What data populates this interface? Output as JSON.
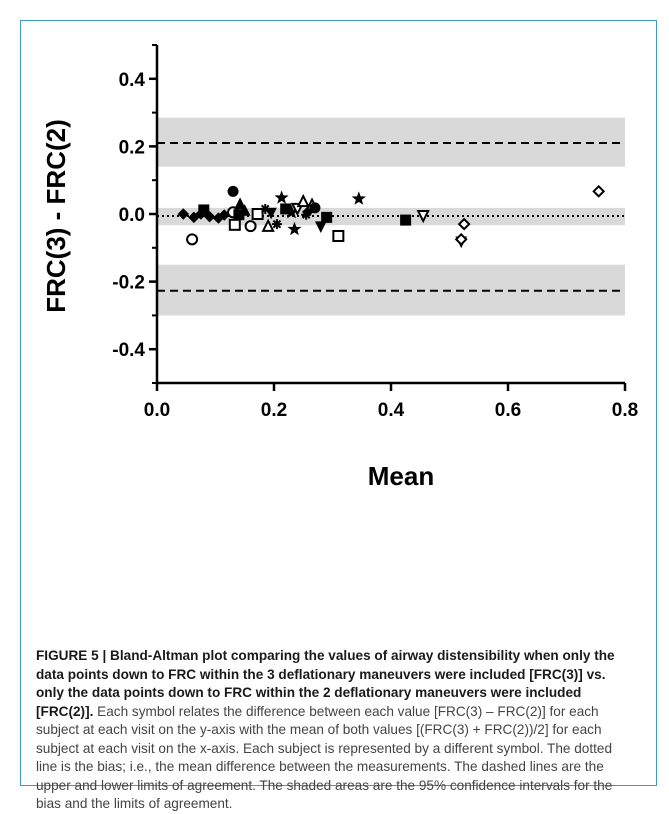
{
  "figure": {
    "caption_lead": "FIGURE 5 | Bland-Altman plot comparing the values of airway distensibility when only the data points down to FRC within the 3 deflationary maneuvers were included [FRC(3)] vs. only the data points down to FRC within the 2 deflationary maneuvers were included [FRC(2)].",
    "caption_body": " Each symbol relates the difference between each value [FRC(3) – FRC(2)] for each subject at each visit on the y-axis with the mean of both values [(FRC(3) + FRC(2))/2] for each subject at each visit on the x-axis. Each subject is represented by a different symbol. The dotted line is the bias; i.e., the mean difference between the measurements. The dashed lines are the upper and lower limits of agreement. The shaded areas are the 95% confidence intervals for the bias and the limits of agreement."
  },
  "chart_data": {
    "type": "scatter",
    "title": "",
    "xlabel": "Mean",
    "ylabel": "FRC(3) - FRC(2)",
    "xlim": [
      0.0,
      0.8
    ],
    "ylim": [
      -0.5,
      0.5
    ],
    "x_ticks": [
      0.0,
      0.2,
      0.4,
      0.6,
      0.8
    ],
    "x_tick_labels": [
      "0.0",
      "0.2",
      "0.4",
      "0.6",
      "0.8"
    ],
    "y_ticks": [
      -0.4,
      -0.2,
      0.0,
      0.2,
      0.4
    ],
    "y_tick_labels": [
      "-0.4",
      "-0.2",
      "0.0",
      "0.2",
      "0.4"
    ],
    "grid": false,
    "bias": -0.006,
    "upper_loa": 0.21,
    "lower_loa": -0.227,
    "shaded_bands": [
      {
        "name": "upper limit of agreement 95% CI",
        "low": 0.14,
        "high": 0.285
      },
      {
        "name": "bias 95% CI",
        "low": -0.033,
        "high": 0.018
      },
      {
        "name": "lower limit of agreement 95% CI",
        "low": -0.3,
        "high": -0.15
      }
    ],
    "band_color": "#d9d9d9",
    "points": [
      {
        "x": 0.045,
        "y": 0.0,
        "marker": "diamond-filled"
      },
      {
        "x": 0.06,
        "y": -0.075,
        "marker": "circle-open"
      },
      {
        "x": 0.063,
        "y": -0.01,
        "marker": "diamond-filled"
      },
      {
        "x": 0.075,
        "y": 0.0,
        "marker": "diamond-filled"
      },
      {
        "x": 0.08,
        "y": 0.012,
        "marker": "square-filled"
      },
      {
        "x": 0.09,
        "y": -0.008,
        "marker": "diamond-filled"
      },
      {
        "x": 0.105,
        "y": -0.012,
        "marker": "diamond-filled"
      },
      {
        "x": 0.115,
        "y": -0.003,
        "marker": "diamond-filled"
      },
      {
        "x": 0.13,
        "y": 0.067,
        "marker": "circle-filled"
      },
      {
        "x": 0.13,
        "y": 0.005,
        "marker": "circle-open"
      },
      {
        "x": 0.133,
        "y": -0.032,
        "marker": "square-open"
      },
      {
        "x": 0.14,
        "y": -0.002,
        "marker": "square-filled"
      },
      {
        "x": 0.142,
        "y": 0.028,
        "marker": "triangle-filled"
      },
      {
        "x": 0.15,
        "y": 0.008,
        "marker": "triangle-filled"
      },
      {
        "x": 0.16,
        "y": -0.036,
        "marker": "circle-open"
      },
      {
        "x": 0.172,
        "y": 0.0,
        "marker": "square-open"
      },
      {
        "x": 0.185,
        "y": 0.015,
        "marker": "asterisk"
      },
      {
        "x": 0.19,
        "y": -0.038,
        "marker": "triangle-open"
      },
      {
        "x": 0.195,
        "y": 0.005,
        "marker": "triangle-down-filled"
      },
      {
        "x": 0.205,
        "y": -0.03,
        "marker": "asterisk"
      },
      {
        "x": 0.213,
        "y": 0.048,
        "marker": "star"
      },
      {
        "x": 0.22,
        "y": 0.015,
        "marker": "square-filled"
      },
      {
        "x": 0.23,
        "y": 0.005,
        "marker": "star"
      },
      {
        "x": 0.235,
        "y": -0.045,
        "marker": "star"
      },
      {
        "x": 0.24,
        "y": 0.018,
        "marker": "triangle-down-open"
      },
      {
        "x": 0.25,
        "y": 0.035,
        "marker": "triangle-open"
      },
      {
        "x": 0.255,
        "y": -0.002,
        "marker": "asterisk"
      },
      {
        "x": 0.26,
        "y": 0.01,
        "marker": "diamond-filled"
      },
      {
        "x": 0.265,
        "y": 0.025,
        "marker": "triangle-open"
      },
      {
        "x": 0.27,
        "y": 0.018,
        "marker": "circle-filled"
      },
      {
        "x": 0.28,
        "y": -0.035,
        "marker": "triangle-down-filled"
      },
      {
        "x": 0.29,
        "y": -0.01,
        "marker": "square-filled"
      },
      {
        "x": 0.31,
        "y": -0.065,
        "marker": "square-open"
      },
      {
        "x": 0.345,
        "y": 0.045,
        "marker": "star"
      },
      {
        "x": 0.425,
        "y": -0.018,
        "marker": "square-filled"
      },
      {
        "x": 0.455,
        "y": -0.003,
        "marker": "triangle-down-open"
      },
      {
        "x": 0.52,
        "y": -0.08,
        "marker": "triangle-down-filled"
      },
      {
        "x": 0.52,
        "y": -0.075,
        "marker": "diamond-open"
      },
      {
        "x": 0.525,
        "y": -0.03,
        "marker": "diamond-open"
      },
      {
        "x": 0.755,
        "y": 0.067,
        "marker": "diamond-open"
      }
    ]
  }
}
